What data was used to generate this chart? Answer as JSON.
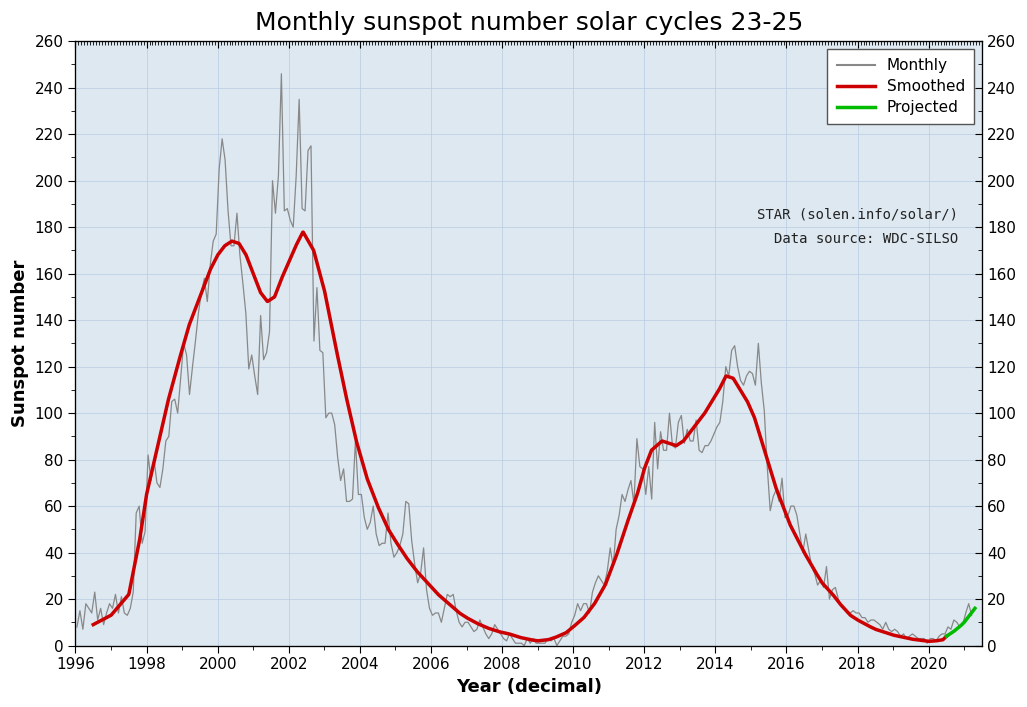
{
  "title": "Monthly sunspot number solar cycles 23-25",
  "xlabel": "Year (decimal)",
  "ylabel": "Sunspot number",
  "xlim": [
    1996.0,
    2021.5
  ],
  "ylim": [
    0,
    260
  ],
  "yticks": [
    0,
    20,
    40,
    60,
    80,
    100,
    120,
    140,
    160,
    180,
    200,
    220,
    240,
    260
  ],
  "xticks": [
    1996,
    1998,
    2000,
    2002,
    2004,
    2006,
    2008,
    2010,
    2012,
    2014,
    2016,
    2018,
    2020
  ],
  "monthly_color": "#888888",
  "smoothed_color": "#cc0000",
  "projected_color": "#00bb00",
  "background_color": "#dde8f0",
  "legend_labels": [
    "Monthly",
    "Smoothed",
    "Projected"
  ],
  "annotation1": "STAR (solen.info/solar/)",
  "annotation2": "Data source: WDC-SILSO",
  "title_fontsize": 18,
  "label_fontsize": 13,
  "tick_fontsize": 11
}
